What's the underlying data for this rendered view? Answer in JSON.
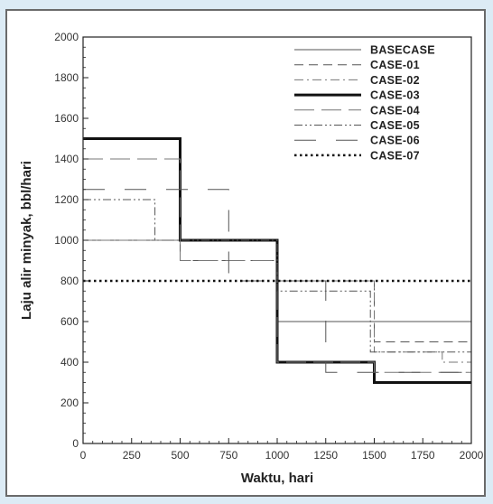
{
  "chart_data": {
    "type": "line",
    "title": "",
    "xlabel": "Waktu, hari",
    "ylabel": "Laju alir minyak, bbl/hari",
    "xlim": [
      0,
      2000
    ],
    "ylim": [
      0,
      2000
    ],
    "xticks": [
      0,
      250,
      500,
      750,
      1000,
      1250,
      1500,
      1750,
      2000
    ],
    "yticks": [
      0,
      200,
      400,
      600,
      800,
      1000,
      1200,
      1400,
      1600,
      1800,
      2000
    ],
    "grid": false,
    "legend_position": "top-right",
    "series": [
      {
        "name": "BASECASE",
        "style": "solid",
        "width": 1,
        "color": "#555555",
        "x": [
          0,
          1000,
          1000,
          2000
        ],
        "y": [
          1000,
          1000,
          600,
          600
        ]
      },
      {
        "name": "CASE-01",
        "style": "dashed",
        "width": 1,
        "color": "#555555",
        "x": [
          0,
          500,
          500,
          1000,
          1000,
          1500,
          1500,
          2000
        ],
        "y": [
          1000,
          1000,
          900,
          900,
          800,
          800,
          500,
          500
        ]
      },
      {
        "name": "CASE-02",
        "style": "dashdot",
        "width": 1,
        "color": "#777777",
        "x": [
          0,
          1000,
          1000,
          1500,
          1500,
          1850,
          1850,
          2000
        ],
        "y": [
          1000,
          1000,
          800,
          800,
          450,
          450,
          400,
          400
        ]
      },
      {
        "name": "CASE-03",
        "style": "solid",
        "width": 3,
        "color": "#111111",
        "x": [
          0,
          500,
          500,
          1000,
          1000,
          1500,
          1500,
          2000
        ],
        "y": [
          1500,
          1500,
          1000,
          1000,
          400,
          400,
          300,
          300
        ]
      },
      {
        "name": "CASE-04",
        "style": "longdash",
        "width": 1,
        "color": "#777777",
        "x": [
          0,
          500,
          500,
          1000,
          1000,
          1500,
          1500,
          2000
        ],
        "y": [
          1400,
          1400,
          900,
          900,
          400,
          400,
          350,
          350
        ]
      },
      {
        "name": "CASE-05",
        "style": "dashdotdot",
        "width": 1,
        "color": "#555555",
        "x": [
          0,
          370,
          370,
          1000,
          1000,
          1480,
          1480,
          2000
        ],
        "y": [
          1200,
          1200,
          1000,
          1000,
          750,
          750,
          450,
          450
        ]
      },
      {
        "name": "CASE-06",
        "style": "longdashgap",
        "width": 1,
        "color": "#555555",
        "x": [
          0,
          750,
          750,
          1250,
          1250,
          2000
        ],
        "y": [
          1250,
          1250,
          800,
          800,
          350,
          350
        ]
      },
      {
        "name": "CASE-07",
        "style": "dotted",
        "width": 2.5,
        "color": "#111111",
        "x": [
          0,
          2000
        ],
        "y": [
          800,
          800
        ]
      }
    ]
  }
}
